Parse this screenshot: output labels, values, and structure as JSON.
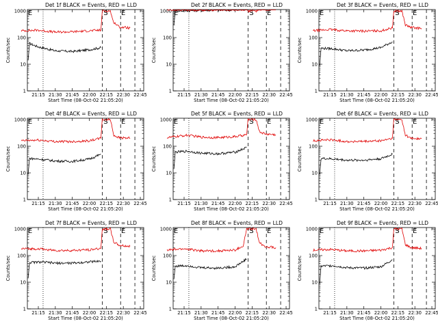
{
  "chart_data": [
    {
      "type": "line",
      "title": "Det 1f BLACK = Events, RED = LLD",
      "xlabel": "Start Time (08-Oct-02 21:05:20)",
      "ylabel": "Counts/sec",
      "ylim": [
        1,
        1000
      ],
      "yscale": "log",
      "x_ticks": [
        "21:15",
        "21:30",
        "21:45",
        "22:00",
        "22:15",
        "22:30",
        "22:45"
      ],
      "y_ticks": [
        "1",
        "10",
        "100",
        "1000"
      ],
      "markers": [
        "E",
        "S",
        "E"
      ],
      "series": [
        {
          "name": "Events",
          "color": "#000000",
          "values": [
            [
              21.1,
              14
            ],
            [
              21.12,
              60
            ],
            [
              21.25,
              45
            ],
            [
              21.5,
              32
            ],
            [
              21.75,
              30
            ],
            [
              22.0,
              35
            ],
            [
              22.17,
              42
            ]
          ]
        },
        {
          "name": "LLD",
          "color": "#e00000",
          "values": [
            [
              21.0,
              180
            ],
            [
              21.25,
              190
            ],
            [
              21.5,
              160
            ],
            [
              21.75,
              165
            ],
            [
              22.0,
              180
            ],
            [
              22.17,
              190
            ],
            [
              22.19,
              1000
            ],
            [
              22.31,
              1000
            ],
            [
              22.35,
              400
            ],
            [
              22.44,
              250
            ],
            [
              22.6,
              230
            ]
          ]
        }
      ]
    },
    {
      "type": "line",
      "title": "Det 2f BLACK = Events, RED = LLD",
      "xlabel": "Start Time (08-Oct-02 21:05:20)",
      "ylabel": "Counts/sec",
      "ylim": [
        1,
        1000
      ],
      "yscale": "log",
      "x_ticks": [
        "21:15",
        "21:30",
        "21:45",
        "22:00",
        "22:15",
        "22:30",
        "22:45"
      ],
      "y_ticks": [
        "1",
        "10",
        "100",
        "1000"
      ],
      "markers": [
        "E",
        "S",
        "E"
      ],
      "series": [
        {
          "name": "Events",
          "color": "#000000",
          "values": [
            [
              21.1,
              300
            ],
            [
              21.12,
              1000
            ],
            [
              21.5,
              1050
            ],
            [
              22.0,
              1080
            ],
            [
              22.17,
              1100
            ]
          ]
        },
        {
          "name": "LLD",
          "color": "#e00000",
          "values": [
            [
              21.0,
              1100
            ],
            [
              21.5,
              1100
            ],
            [
              22.0,
              1120
            ],
            [
              22.17,
              1150
            ],
            [
              22.19,
              1000
            ],
            [
              22.31,
              1000
            ],
            [
              22.36,
              1150
            ],
            [
              22.6,
              1150
            ]
          ]
        }
      ]
    },
    {
      "type": "line",
      "title": "Det 3f BLACK = Events, RED = LLD",
      "xlabel": "Start Time (08-Oct-02 21:05:20)",
      "ylabel": "Counts/sec",
      "ylim": [
        1,
        1000
      ],
      "yscale": "log",
      "x_ticks": [
        "21:15",
        "21:30",
        "21:45",
        "22:00",
        "22:15",
        "22:30",
        "22:45"
      ],
      "y_ticks": [
        "1",
        "10",
        "100",
        "1000"
      ],
      "markers": [
        "E",
        "S",
        "E"
      ],
      "series": [
        {
          "name": "Events",
          "color": "#000000",
          "values": [
            [
              21.1,
              9
            ],
            [
              21.12,
              40
            ],
            [
              21.3,
              38
            ],
            [
              21.5,
              32
            ],
            [
              21.75,
              34
            ],
            [
              22.0,
              42
            ],
            [
              22.17,
              70
            ]
          ]
        },
        {
          "name": "LLD",
          "color": "#e00000",
          "values": [
            [
              21.0,
              180
            ],
            [
              21.25,
              200
            ],
            [
              21.5,
              180
            ],
            [
              21.75,
              175
            ],
            [
              22.0,
              180
            ],
            [
              22.17,
              230
            ],
            [
              22.19,
              1000
            ],
            [
              22.31,
              1000
            ],
            [
              22.36,
              300
            ],
            [
              22.44,
              240
            ],
            [
              22.6,
              220
            ]
          ]
        }
      ]
    },
    {
      "type": "line",
      "title": "Det 4f BLACK = Events, RED = LLD",
      "xlabel": "Start Time (08-Oct-02 21:05:20)",
      "ylabel": "Counts/sec",
      "ylim": [
        1,
        1000
      ],
      "yscale": "log",
      "x_ticks": [
        "21:15",
        "21:30",
        "21:45",
        "22:00",
        "22:15",
        "22:30",
        "22:45"
      ],
      "y_ticks": [
        "1",
        "10",
        "100",
        "1000"
      ],
      "markers": [
        "E",
        "S",
        "E"
      ],
      "series": [
        {
          "name": "Events",
          "color": "#000000",
          "values": [
            [
              21.1,
              9
            ],
            [
              21.12,
              35
            ],
            [
              21.3,
              32
            ],
            [
              21.5,
              28
            ],
            [
              21.75,
              27
            ],
            [
              22.0,
              33
            ],
            [
              22.17,
              50
            ]
          ]
        },
        {
          "name": "LLD",
          "color": "#e00000",
          "values": [
            [
              21.0,
              160
            ],
            [
              21.25,
              170
            ],
            [
              21.5,
              150
            ],
            [
              21.75,
              150
            ],
            [
              22.0,
              160
            ],
            [
              22.17,
              200
            ],
            [
              22.19,
              1000
            ],
            [
              22.31,
              1000
            ],
            [
              22.36,
              260
            ],
            [
              22.44,
              210
            ],
            [
              22.6,
              200
            ]
          ]
        }
      ]
    },
    {
      "type": "line",
      "title": "Det 5f BLACK = Events, RED = LLD",
      "xlabel": "Start Time (08-Oct-02 21:05:20)",
      "ylabel": "Counts/sec",
      "ylim": [
        1,
        1000
      ],
      "yscale": "log",
      "x_ticks": [
        "21:15",
        "21:30",
        "21:45",
        "22:00",
        "22:15",
        "22:30",
        "22:45"
      ],
      "y_ticks": [
        "1",
        "10",
        "100",
        "1000"
      ],
      "markers": [
        "E",
        "S",
        "E"
      ],
      "series": [
        {
          "name": "Events",
          "color": "#000000",
          "values": [
            [
              21.1,
              14
            ],
            [
              21.12,
              60
            ],
            [
              21.3,
              65
            ],
            [
              21.5,
              55
            ],
            [
              21.75,
              52
            ],
            [
              22.0,
              60
            ],
            [
              22.17,
              90
            ]
          ]
        },
        {
          "name": "LLD",
          "color": "#e00000",
          "values": [
            [
              21.0,
              210
            ],
            [
              21.3,
              260
            ],
            [
              21.5,
              220
            ],
            [
              21.75,
              210
            ],
            [
              22.0,
              230
            ],
            [
              22.17,
              270
            ],
            [
              22.19,
              1000
            ],
            [
              22.31,
              1000
            ],
            [
              22.36,
              350
            ],
            [
              22.44,
              290
            ],
            [
              22.6,
              270
            ]
          ]
        }
      ]
    },
    {
      "type": "line",
      "title": "Det 6f BLACK = Events, RED = LLD",
      "xlabel": "Start Time (08-Oct-02 21:05:20)",
      "ylabel": "Counts/sec",
      "ylim": [
        1,
        1000
      ],
      "yscale": "log",
      "x_ticks": [
        "21:15",
        "21:30",
        "21:45",
        "22:00",
        "22:15",
        "22:30",
        "22:45"
      ],
      "y_ticks": [
        "1",
        "10",
        "100",
        "1000"
      ],
      "markers": [
        "E",
        "S",
        "E"
      ],
      "series": [
        {
          "name": "Events",
          "color": "#000000",
          "values": [
            [
              21.1,
              9
            ],
            [
              21.12,
              35
            ],
            [
              21.3,
              33
            ],
            [
              21.5,
              30
            ],
            [
              21.75,
              30
            ],
            [
              22.0,
              34
            ],
            [
              22.17,
              50
            ]
          ]
        },
        {
          "name": "LLD",
          "color": "#e00000",
          "values": [
            [
              21.0,
              160
            ],
            [
              21.25,
              175
            ],
            [
              21.5,
              150
            ],
            [
              21.75,
              150
            ],
            [
              22.0,
              160
            ],
            [
              22.17,
              200
            ],
            [
              22.19,
              1000
            ],
            [
              22.31,
              1000
            ],
            [
              22.36,
              260
            ],
            [
              22.44,
              200
            ],
            [
              22.6,
              190
            ]
          ]
        }
      ]
    },
    {
      "type": "line",
      "title": "Det 7f BLACK = Events, RED = LLD",
      "xlabel": "Start Time (08-Oct-02 21:05:20)",
      "ylabel": "Counts/sec",
      "ylim": [
        1,
        1000
      ],
      "yscale": "log",
      "x_ticks": [
        "21:15",
        "21:30",
        "21:45",
        "22:00",
        "22:15",
        "22:30",
        "22:45"
      ],
      "y_ticks": [
        "1",
        "10",
        "100",
        "1000"
      ],
      "markers": [
        "E",
        "S",
        "E"
      ],
      "series": [
        {
          "name": "Events",
          "color": "#000000",
          "values": [
            [
              21.1,
              14
            ],
            [
              21.12,
              55
            ],
            [
              21.3,
              57
            ],
            [
              21.5,
              52
            ],
            [
              21.75,
              52
            ],
            [
              22.0,
              58
            ],
            [
              22.17,
              62
            ]
          ]
        },
        {
          "name": "LLD",
          "color": "#e00000",
          "values": [
            [
              21.0,
              180
            ],
            [
              21.25,
              180
            ],
            [
              21.5,
              155
            ],
            [
              21.75,
              155
            ],
            [
              22.0,
              165
            ],
            [
              22.17,
              185
            ],
            [
              22.19,
              1000
            ],
            [
              22.31,
              1000
            ],
            [
              22.36,
              320
            ],
            [
              22.44,
              240
            ],
            [
              22.6,
              220
            ]
          ]
        }
      ]
    },
    {
      "type": "line",
      "title": "Det 8f BLACK = Events, RED = LLD",
      "xlabel": "Start Time (08-Oct-02 21:05:20)",
      "ylabel": "Counts/sec",
      "ylim": [
        1,
        1000
      ],
      "yscale": "log",
      "x_ticks": [
        "21:15",
        "21:30",
        "21:45",
        "22:00",
        "22:15",
        "22:30",
        "22:45"
      ],
      "y_ticks": [
        "1",
        "10",
        "100",
        "1000"
      ],
      "markers": [
        "E",
        "S",
        "E"
      ],
      "series": [
        {
          "name": "Events",
          "color": "#000000",
          "values": [
            [
              21.1,
              13
            ],
            [
              21.12,
              40
            ],
            [
              21.3,
              42
            ],
            [
              21.5,
              35
            ],
            [
              21.75,
              34
            ],
            [
              22.0,
              38
            ],
            [
              22.17,
              75
            ]
          ]
        },
        {
          "name": "LLD",
          "color": "#e00000",
          "values": [
            [
              21.0,
              160
            ],
            [
              21.25,
              180
            ],
            [
              21.5,
              150
            ],
            [
              21.75,
              150
            ],
            [
              22.0,
              160
            ],
            [
              22.12,
              230
            ],
            [
              22.17,
              1000
            ],
            [
              22.31,
              1000
            ],
            [
              22.36,
              300
            ],
            [
              22.44,
              220
            ],
            [
              22.6,
              200
            ]
          ]
        }
      ]
    },
    {
      "type": "line",
      "title": "Det 9f BLACK = Events, RED = LLD",
      "xlabel": "Start Time (08-Oct-02 21:05:20)",
      "ylabel": "Counts/sec",
      "ylim": [
        1,
        1000
      ],
      "yscale": "log",
      "x_ticks": [
        "21:15",
        "21:30",
        "21:45",
        "22:00",
        "22:15",
        "22:30",
        "22:45"
      ],
      "y_ticks": [
        "1",
        "10",
        "100",
        "1000"
      ],
      "markers": [
        "E",
        "S",
        "E"
      ],
      "series": [
        {
          "name": "Events",
          "color": "#000000",
          "values": [
            [
              21.1,
              9
            ],
            [
              21.12,
              40
            ],
            [
              21.3,
              42
            ],
            [
              21.5,
              35
            ],
            [
              21.75,
              34
            ],
            [
              22.0,
              38
            ],
            [
              22.17,
              70
            ]
          ]
        },
        {
          "name": "LLD",
          "color": "#e00000",
          "values": [
            [
              21.0,
              160
            ],
            [
              21.25,
              170
            ],
            [
              21.5,
              150
            ],
            [
              21.75,
              150
            ],
            [
              22.0,
              160
            ],
            [
              22.17,
              200
            ],
            [
              22.19,
              1000
            ],
            [
              22.31,
              1000
            ],
            [
              22.36,
              260
            ],
            [
              22.44,
              200
            ],
            [
              22.6,
              185
            ]
          ]
        }
      ]
    }
  ]
}
